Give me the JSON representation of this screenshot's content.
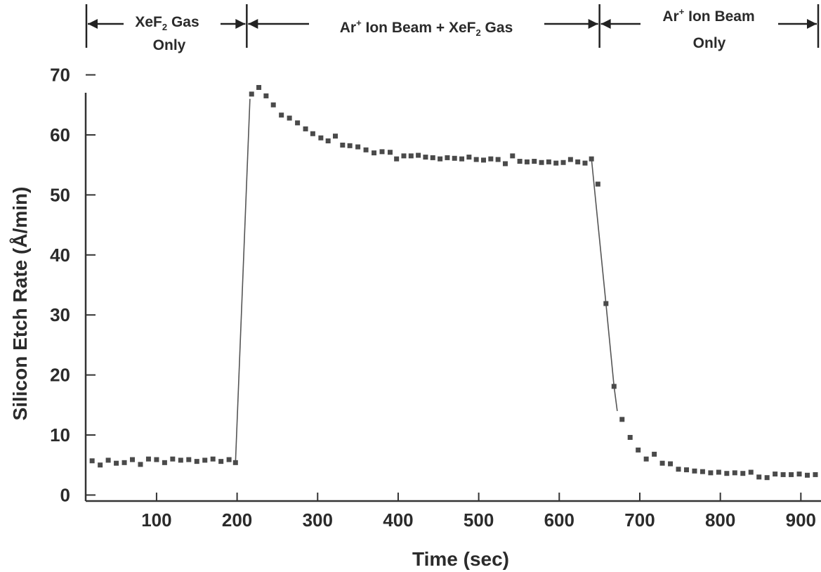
{
  "chart_data": {
    "type": "scatter",
    "xlabel": "Time (sec)",
    "ylabel": "Silicon Etch Rate (Å/min)",
    "xlim": [
      12,
      925
    ],
    "ylim": [
      -1,
      71
    ],
    "xticks": [
      "100",
      "200",
      "300",
      "400",
      "500",
      "600",
      "700",
      "800",
      "900"
    ],
    "yticks": [
      "0",
      "10",
      "20",
      "30",
      "40",
      "50",
      "60",
      "70"
    ],
    "grid": false,
    "phases": [
      {
        "label_line1_a": "XeF",
        "label_line1_sub": "2",
        "label_line1_b": " Gas",
        "label_line2": "Only",
        "x_start": 12,
        "x_end": 212
      },
      {
        "label_a": "Ar",
        "label_sup": "+",
        "label_b": " Ion Beam + XeF",
        "label_sub": "2",
        "label_c": " Gas",
        "x_start": 212,
        "x_end": 650
      },
      {
        "label_line1_a": "Ar",
        "label_line1_sup": "+",
        "label_line1_b": " Ion Beam",
        "label_line2": "Only",
        "x_start": 650,
        "x_end": 925
      }
    ],
    "points": [
      [
        20,
        5.7
      ],
      [
        30,
        5.0
      ],
      [
        40,
        5.8
      ],
      [
        50,
        5.3
      ],
      [
        60,
        5.4
      ],
      [
        70,
        5.9
      ],
      [
        80,
        5.1
      ],
      [
        90,
        6.0
      ],
      [
        100,
        5.9
      ],
      [
        110,
        5.4
      ],
      [
        120,
        6.0
      ],
      [
        130,
        5.8
      ],
      [
        140,
        5.9
      ],
      [
        150,
        5.6
      ],
      [
        160,
        5.8
      ],
      [
        170,
        6.0
      ],
      [
        180,
        5.6
      ],
      [
        190,
        5.9
      ],
      [
        198,
        5.4
      ],
      [
        218,
        66.8
      ],
      [
        227,
        67.9
      ],
      [
        236,
        66.5
      ],
      [
        245,
        65.0
      ],
      [
        255,
        63.3
      ],
      [
        265,
        62.8
      ],
      [
        275,
        62.0
      ],
      [
        285,
        61.0
      ],
      [
        294,
        60.2
      ],
      [
        304,
        59.5
      ],
      [
        313,
        59.0
      ],
      [
        322,
        59.8
      ],
      [
        331,
        58.3
      ],
      [
        340,
        58.2
      ],
      [
        350,
        58.0
      ],
      [
        360,
        57.5
      ],
      [
        370,
        57.0
      ],
      [
        380,
        57.2
      ],
      [
        390,
        57.1
      ],
      [
        398,
        56.0
      ],
      [
        407,
        56.5
      ],
      [
        416,
        56.5
      ],
      [
        425,
        56.6
      ],
      [
        434,
        56.3
      ],
      [
        443,
        56.2
      ],
      [
        452,
        56.0
      ],
      [
        461,
        56.2
      ],
      [
        470,
        56.1
      ],
      [
        479,
        56.0
      ],
      [
        488,
        56.3
      ],
      [
        497,
        55.9
      ],
      [
        506,
        55.8
      ],
      [
        515,
        56.0
      ],
      [
        524,
        55.9
      ],
      [
        533,
        55.2
      ],
      [
        542,
        56.5
      ],
      [
        551,
        55.6
      ],
      [
        560,
        55.5
      ],
      [
        569,
        55.6
      ],
      [
        578,
        55.4
      ],
      [
        587,
        55.5
      ],
      [
        596,
        55.3
      ],
      [
        605,
        55.4
      ],
      [
        614,
        55.9
      ],
      [
        623,
        55.5
      ],
      [
        632,
        55.3
      ],
      [
        640,
        56.0
      ],
      [
        648,
        51.8
      ],
      [
        658,
        31.9
      ],
      [
        668,
        18.1
      ],
      [
        678,
        12.6
      ],
      [
        688,
        9.6
      ],
      [
        698,
        7.5
      ],
      [
        708,
        6.0
      ],
      [
        718,
        6.8
      ],
      [
        728,
        5.3
      ],
      [
        738,
        5.2
      ],
      [
        748,
        4.3
      ],
      [
        758,
        4.2
      ],
      [
        768,
        4.0
      ],
      [
        778,
        3.9
      ],
      [
        788,
        3.7
      ],
      [
        798,
        3.8
      ],
      [
        808,
        3.6
      ],
      [
        818,
        3.7
      ],
      [
        828,
        3.6
      ],
      [
        838,
        3.8
      ],
      [
        848,
        3.0
      ],
      [
        858,
        2.9
      ],
      [
        868,
        3.5
      ],
      [
        878,
        3.4
      ],
      [
        888,
        3.4
      ],
      [
        898,
        3.5
      ],
      [
        908,
        3.3
      ],
      [
        918,
        3.4
      ]
    ],
    "connector_lines": [
      [
        [
          198,
          5.4
        ],
        [
          216,
          66.0
        ]
      ],
      [
        [
          640,
          56.0
        ],
        [
          658,
          31.9
        ],
        [
          668,
          18.1
        ],
        [
          672,
          14.0
        ]
      ]
    ]
  }
}
